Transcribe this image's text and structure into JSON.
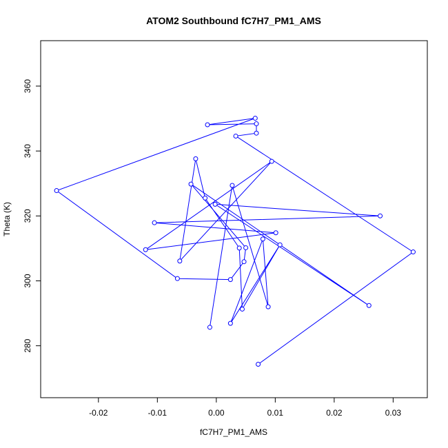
{
  "chart_data": {
    "type": "line",
    "title": "ATOM2 Southbound fC7H7_PM1_AMS",
    "xlabel": "fC7H7_PM1_AMS",
    "ylabel": "Theta (K)",
    "xlim": [
      -0.0298,
      0.0358
    ],
    "ylim": [
      264,
      374
    ],
    "x_ticks": [
      -0.02,
      -0.01,
      0.0,
      0.01,
      0.02,
      0.03
    ],
    "x_tick_labels": [
      "-0.02",
      "-0.01",
      "0.00",
      "0.01",
      "0.02",
      "0.03"
    ],
    "y_ticks": [
      280,
      300,
      320,
      340,
      360
    ],
    "y_tick_labels": [
      "280",
      "300",
      "320",
      "340",
      "360"
    ],
    "grid": false,
    "legend": "none",
    "line_color": "#0000ff",
    "marker": "open-circle",
    "series": [
      {
        "x": [
          0.0071,
          0.0334,
          0.0033,
          0.0068,
          0.0068,
          -0.0015,
          0.0066,
          -0.0271,
          -0.0066,
          0.0024,
          0.0047,
          0.005,
          -0.0043,
          0.0259,
          -0.0002,
          0.0278,
          -0.0105,
          0.0101,
          -0.012,
          0.0094,
          -0.0062,
          -0.0035,
          -0.0019,
          0.0039,
          0.0044,
          0.0108,
          0.0024,
          0.0079,
          0.0088,
          0.0027,
          -0.0011
        ],
        "y": [
          274.3,
          308.9,
          344.6,
          345.5,
          348.4,
          348.1,
          350.1,
          327.8,
          300.7,
          300.4,
          305.9,
          310.2,
          329.8,
          292.4,
          323.6,
          320.0,
          317.9,
          314.8,
          309.6,
          336.8,
          306.1,
          337.6,
          325.5,
          310.1,
          291.3,
          311.1,
          286.9,
          312.9,
          292.0,
          329.4,
          285.7
        ]
      }
    ]
  }
}
